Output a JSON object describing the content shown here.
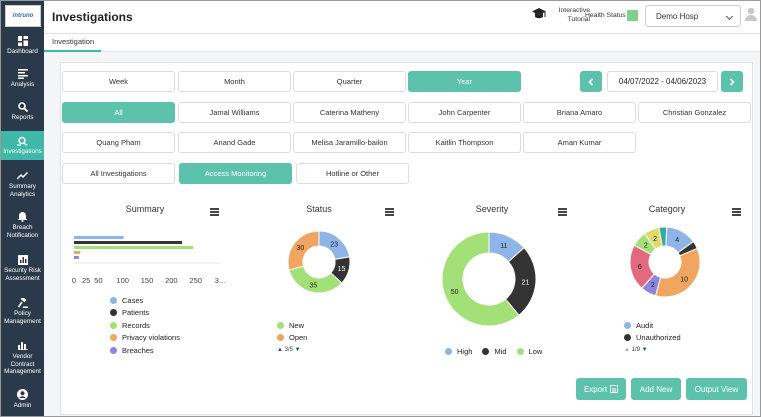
{
  "app": {
    "logo_text": "intruno",
    "page_title": "Investigations"
  },
  "sidebar": {
    "items": [
      {
        "label": "Dashboard",
        "icon": "dashboard-icon"
      },
      {
        "label": "Analysis",
        "icon": "analysis-icon"
      },
      {
        "label": "Reports",
        "icon": "reports-icon"
      },
      {
        "label": "Investigations",
        "icon": "investigations-icon",
        "active": true
      },
      {
        "label": "Summary Analytics",
        "icon": "trend-icon"
      },
      {
        "label": "Breach Notification",
        "icon": "bell-icon"
      },
      {
        "label": "Security Risk Assessment",
        "icon": "chart-icon"
      },
      {
        "label": "Policy Management",
        "icon": "gavel-icon"
      },
      {
        "label": "Vendor Contract Management",
        "icon": "bar-chart-icon"
      },
      {
        "label": "Admin",
        "icon": "admin-icon"
      }
    ]
  },
  "header": {
    "tutorial_label": "Interactive Tutorial",
    "health_status_label": "Health Status",
    "health_color": "#7fd08a",
    "hospital": "Demo Hosp"
  },
  "tabs": {
    "active": "Investigation"
  },
  "filters": {
    "periods": [
      "Week",
      "Month",
      "Quarter",
      "Year"
    ],
    "active_period": "Year",
    "date_range": "04/07/2022 - 04/06/2023",
    "people_row1": [
      "All",
      "Jamal Williams",
      "Caterina Matheny",
      "John Carpenter",
      "Briana Amaro",
      "Christian Gonzalez"
    ],
    "people_row2": [
      "Quang Pham",
      "Anand Gade",
      "Melisa Jaramillo-bailon",
      "Kaitlin Thompson",
      "Aman Kumar"
    ],
    "active_person": "All",
    "types": [
      "All Investigations",
      "Access Monitoring",
      "Hotline or Other"
    ],
    "active_type": "Access Monitoring"
  },
  "charts": {
    "summary": {
      "title": "Summary",
      "ticks": [
        "0",
        "25",
        "50",
        "100",
        "150",
        "200",
        "250",
        "3..."
      ],
      "legend": [
        {
          "label": "Cases",
          "color": "#8fb5e8"
        },
        {
          "label": "Patients",
          "color": "#333333"
        },
        {
          "label": "Records",
          "color": "#a3e078"
        },
        {
          "label": "Privacy violations",
          "color": "#f0a560"
        },
        {
          "label": "Breaches",
          "color": "#8a86e0"
        }
      ]
    },
    "status": {
      "title": "Status",
      "legend": [
        {
          "label": "New",
          "color": "#a3e078"
        },
        {
          "label": "Open",
          "color": "#f0a560"
        }
      ],
      "pager": "3/5"
    },
    "severity": {
      "title": "Severity",
      "legend": [
        {
          "label": "High",
          "color": "#8fb5e8"
        },
        {
          "label": "Mid",
          "color": "#333333"
        },
        {
          "label": "Low",
          "color": "#a3e078"
        }
      ]
    },
    "category": {
      "title": "Category",
      "legend": [
        {
          "label": "Audit",
          "color": "#8fb5e8"
        },
        {
          "label": "Unauthorized",
          "color": "#333333"
        }
      ],
      "pager": "1/9"
    }
  },
  "chart_data": [
    {
      "type": "bar",
      "title": "Summary",
      "orientation": "horizontal",
      "categories": [
        "Cases",
        "Patients",
        "Records",
        "Privacy violations",
        "Breaches"
      ],
      "values": [
        102,
        222,
        245,
        13,
        10
      ],
      "xlim": [
        0,
        300
      ]
    },
    {
      "type": "pie",
      "title": "Status",
      "donut": true,
      "labels": [
        "",
        "",
        "",
        ""
      ],
      "values": [
        23,
        15,
        35,
        30
      ],
      "colors": [
        "#8fb5e8",
        "#333333",
        "#a3e078",
        "#f0a560"
      ],
      "slice_labels": [
        "23",
        "15",
        "35",
        "30"
      ]
    },
    {
      "type": "pie",
      "title": "Severity",
      "donut": true,
      "labels": [
        "High",
        "Mid",
        "Low"
      ],
      "values": [
        11,
        21,
        50
      ],
      "colors": [
        "#8fb5e8",
        "#333333",
        "#a3e078"
      ],
      "slice_labels": [
        "11",
        "21",
        "50"
      ]
    },
    {
      "type": "pie",
      "title": "Category",
      "donut": true,
      "values": [
        4,
        1,
        10,
        2,
        6,
        2,
        2,
        1
      ],
      "colors": [
        "#8fb5e8",
        "#333333",
        "#f0a560",
        "#8a86e0",
        "#e36a7c",
        "#a3e078",
        "#e0d868",
        "#3aa89a"
      ],
      "slice_labels": [
        "4",
        "",
        "10",
        "2",
        "6",
        "2",
        "2",
        ""
      ]
    }
  ],
  "actions": {
    "export": "Export",
    "add_new": "Add New",
    "output_view": "Output View"
  }
}
